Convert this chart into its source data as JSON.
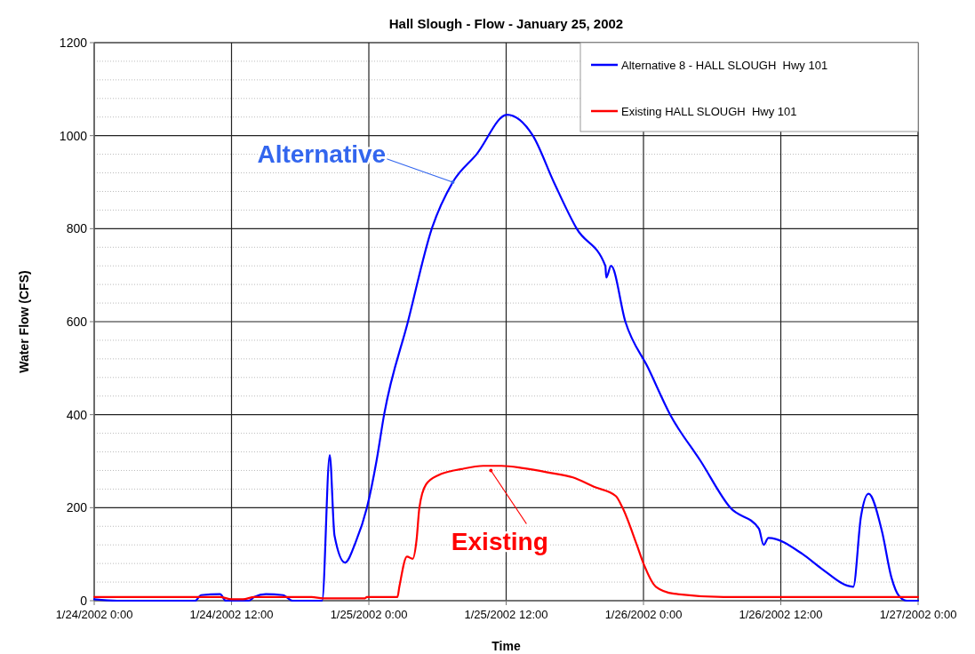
{
  "chart_data": {
    "type": "line",
    "title": "Hall Slough - Flow - January 25, 2002",
    "xlabel": "Time",
    "ylabel": "Water Flow (CFS)",
    "xlim": [
      "2002-01-24T00:00",
      "2002-01-27T00:00"
    ],
    "xticks": [
      {
        "value": "2002-01-24T00:00",
        "label": "1/24/2002 0:00"
      },
      {
        "value": "2002-01-24T12:00",
        "label": "1/24/2002 12:00"
      },
      {
        "value": "2002-01-25T00:00",
        "label": "1/25/2002 0:00"
      },
      {
        "value": "2002-01-25T12:00",
        "label": "1/25/2002 12:00"
      },
      {
        "value": "2002-01-26T00:00",
        "label": "1/26/2002 0:00"
      },
      {
        "value": "2002-01-26T12:00",
        "label": "1/26/2002 12:00"
      },
      {
        "value": "2002-01-27T00:00",
        "label": "1/27/2002 0:00"
      }
    ],
    "ylim": [
      0,
      1200
    ],
    "yticks": [
      0,
      {
        "value": 40,
        "label": null
      },
      {
        "value": 80,
        "label": null
      },
      {
        "value": 120,
        "label": null
      },
      {
        "value": 160,
        "label": null
      },
      200,
      {
        "value": 240,
        "label": null
      },
      {
        "value": 280,
        "label": null
      },
      {
        "value": 320,
        "label": null
      },
      {
        "value": 360,
        "label": null
      },
      400,
      {
        "value": 440,
        "label": null
      },
      {
        "value": 480,
        "label": null
      },
      {
        "value": 520,
        "label": null
      },
      {
        "value": 560,
        "label": null
      },
      600,
      {
        "value": 640,
        "label": null
      },
      {
        "value": 680,
        "label": null
      },
      {
        "value": 720,
        "label": null
      },
      {
        "value": 760,
        "label": null
      },
      800,
      {
        "value": 840,
        "label": null
      },
      {
        "value": 880,
        "label": null
      },
      {
        "value": 920,
        "label": null
      },
      {
        "value": 960,
        "label": null
      },
      1000,
      {
        "value": 1040,
        "label": null
      },
      {
        "value": 1080,
        "label": null
      },
      {
        "value": 1120,
        "label": null
      },
      {
        "value": 1160,
        "label": null
      },
      1200
    ],
    "grid": true,
    "legend": "top right",
    "line_style": "solid",
    "series": [
      {
        "name": "Alternative 8 - HALL SLOUGH  Hwy 101",
        "color": "#0000ff",
        "x": [
          "2002-01-24T00:00",
          "2002-01-24T02:00",
          "2002-01-24T08:50",
          "2002-01-24T09:20",
          "2002-01-24T11:00",
          "2002-01-24T11:30",
          "2002-01-24T13:30",
          "2002-01-24T14:00",
          "2002-01-24T15:00",
          "2002-01-24T16:30",
          "2002-01-24T17:20",
          "2002-01-24T19:55",
          "2002-01-24T20:35",
          "2002-01-24T21:00",
          "2002-01-24T21:55",
          "2002-01-24T22:50",
          "2002-01-24T23:50",
          "2002-01-25T00:40",
          "2002-01-25T01:20",
          "2002-01-25T03:25",
          "2002-01-25T05:30",
          "2002-01-25T07:20",
          "2002-01-25T09:25",
          "2002-01-25T12:05",
          "2002-01-25T14:20",
          "2002-01-25T16:10",
          "2002-01-25T18:10",
          "2002-01-25T20:40",
          "2002-01-25T20:45",
          "2002-01-25T21:10",
          "2002-01-25T22:25",
          "2002-01-26T00:25",
          "2002-01-26T02:20",
          "2002-01-26T05:00",
          "2002-01-26T07:35",
          "2002-01-26T10:05",
          "2002-01-26T10:30",
          "2002-01-26T10:55",
          "2002-01-26T13:55",
          "2002-01-26T15:30",
          "2002-01-26T18:20",
          "2002-01-26T19:00",
          "2002-01-26T19:40",
          "2002-01-26T20:50",
          "2002-01-26T21:40",
          "2002-01-26T22:20",
          "2002-01-26T23:00",
          "2002-01-27T00:00"
        ],
        "values": [
          3,
          0,
          0,
          12,
          14,
          0,
          0,
          8,
          14,
          12,
          0,
          0,
          313,
          140,
          82,
          125,
          200,
          300,
          400,
          600,
          800,
          900,
          960,
          1045,
          1000,
          900,
          800,
          720,
          695,
          720,
          600,
          500,
          400,
          300,
          200,
          155,
          120,
          135,
          100,
          70,
          30,
          180,
          230,
          150,
          50,
          10,
          0,
          0
        ]
      },
      {
        "name": "Existing HALL SLOUGH  Hwy 101",
        "color": "#ff0000",
        "x": [
          "2002-01-24T00:00",
          "2002-01-24T11:00",
          "2002-01-24T12:00",
          "2002-01-24T13:00",
          "2002-01-24T14:00",
          "2002-01-24T19:00",
          "2002-01-24T20:00",
          "2002-01-24T23:40",
          "2002-01-24T23:50",
          "2002-01-25T02:30",
          "2002-01-25T02:40",
          "2002-01-25T03:20",
          "2002-01-25T03:50",
          "2002-01-25T04:10",
          "2002-01-25T04:25",
          "2002-01-25T05:00",
          "2002-01-25T06:05",
          "2002-01-25T08:05",
          "2002-01-25T10:00",
          "2002-01-25T11:35",
          "2002-01-25T13:30",
          "2002-01-25T15:50",
          "2002-01-25T17:50",
          "2002-01-25T19:40",
          "2002-01-25T21:35",
          "2002-01-25T22:10",
          "2002-01-25T23:25",
          "2002-01-26T00:00",
          "2002-01-26T01:05",
          "2002-01-26T02:40",
          "2002-01-26T07:00",
          "2002-01-27T00:00"
        ],
        "values": [
          8,
          8,
          3,
          3,
          8,
          8,
          5,
          5,
          8,
          8,
          30,
          95,
          90,
          130,
          200,
          250,
          270,
          283,
          290,
          290,
          285,
          275,
          265,
          245,
          225,
          200,
          120,
          80,
          30,
          15,
          8,
          8
        ]
      }
    ],
    "annotations": [
      {
        "text": "Alternative",
        "x": "2002-01-25T07:20",
        "y": 900
      },
      {
        "text": "Existing",
        "x": "2002-01-25T10:40",
        "y": 280
      }
    ]
  }
}
